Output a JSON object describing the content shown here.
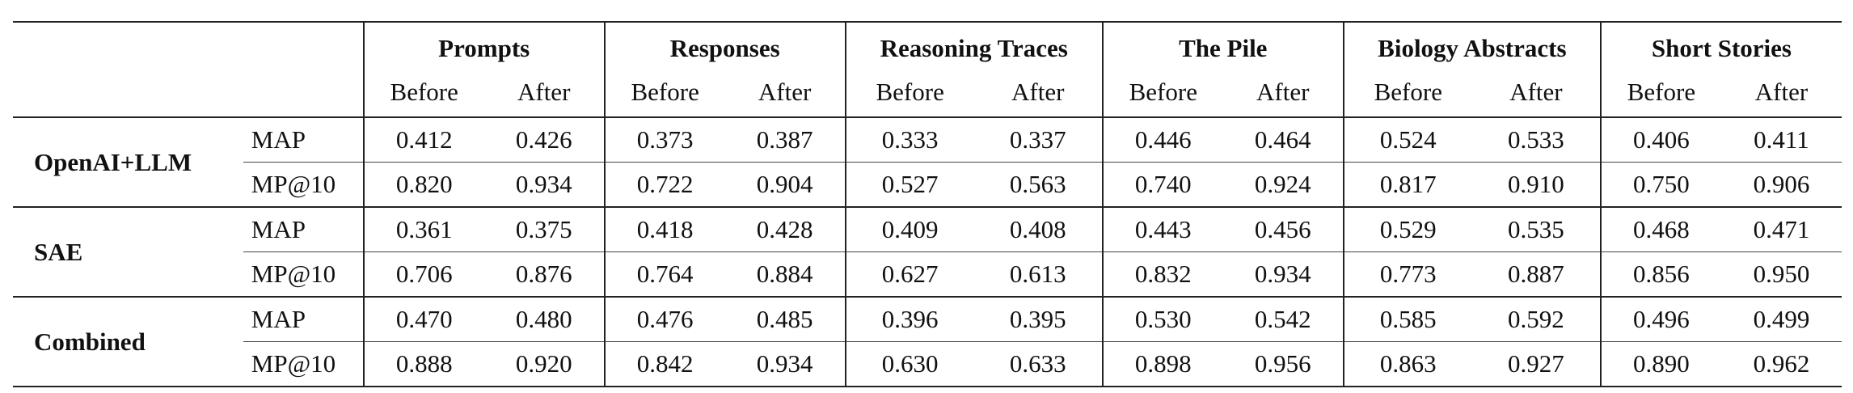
{
  "datasets": [
    {
      "name": "Prompts"
    },
    {
      "name": "Responses"
    },
    {
      "name": "Reasoning Traces"
    },
    {
      "name": "The Pile"
    },
    {
      "name": "Biology Abstracts"
    },
    {
      "name": "Short Stories"
    }
  ],
  "sub_labels": {
    "before": "Before",
    "after": "After"
  },
  "models": [
    {
      "name": "OpenAI+LLM",
      "rows": [
        {
          "metric": "MAP",
          "values": [
            "0.412",
            "0.426",
            "0.373",
            "0.387",
            "0.333",
            "0.337",
            "0.446",
            "0.464",
            "0.524",
            "0.533",
            "0.406",
            "0.411"
          ]
        },
        {
          "metric": "MP@10",
          "values": [
            "0.820",
            "0.934",
            "0.722",
            "0.904",
            "0.527",
            "0.563",
            "0.740",
            "0.924",
            "0.817",
            "0.910",
            "0.750",
            "0.906"
          ]
        }
      ]
    },
    {
      "name": "SAE",
      "rows": [
        {
          "metric": "MAP",
          "values": [
            "0.361",
            "0.375",
            "0.418",
            "0.428",
            "0.409",
            "0.408",
            "0.443",
            "0.456",
            "0.529",
            "0.535",
            "0.468",
            "0.471"
          ]
        },
        {
          "metric": "MP@10",
          "values": [
            "0.706",
            "0.876",
            "0.764",
            "0.884",
            "0.627",
            "0.613",
            "0.832",
            "0.934",
            "0.773",
            "0.887",
            "0.856",
            "0.950"
          ]
        }
      ]
    },
    {
      "name": "Combined",
      "rows": [
        {
          "metric": "MAP",
          "values": [
            "0.470",
            "0.480",
            "0.476",
            "0.485",
            "0.396",
            "0.395",
            "0.530",
            "0.542",
            "0.585",
            "0.592",
            "0.496",
            "0.499"
          ]
        },
        {
          "metric": "MP@10",
          "values": [
            "0.888",
            "0.920",
            "0.842",
            "0.934",
            "0.630",
            "0.633",
            "0.898",
            "0.956",
            "0.863",
            "0.927",
            "0.890",
            "0.962"
          ]
        }
      ]
    }
  ]
}
